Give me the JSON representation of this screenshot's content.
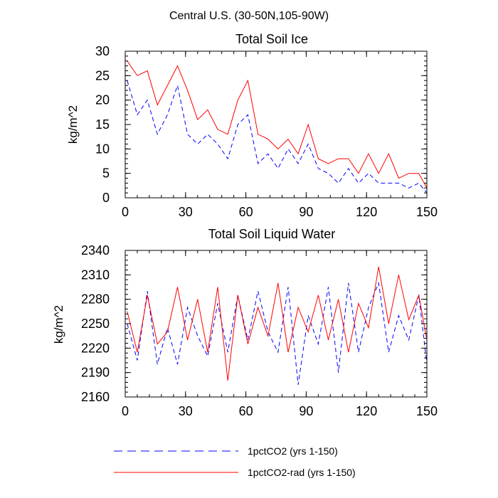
{
  "figure": {
    "title": "Central U.S. (30-50N,105-90W)"
  },
  "legend": {
    "items": [
      {
        "label": "1pctCO2 (yrs 1-150)",
        "color": "#0000ff",
        "dash": "dashed"
      },
      {
        "label": "1pctCO2-rad (yrs 1-150)",
        "color": "#ff0000",
        "dash": "solid"
      }
    ]
  },
  "chart_data": [
    {
      "type": "line",
      "title": "Total Soil Ice",
      "xlabel": "",
      "ylabel": "kg/m^2",
      "xlim": [
        0,
        150
      ],
      "ylim": [
        0,
        30
      ],
      "xticks": [
        0,
        30,
        60,
        90,
        120,
        150
      ],
      "yticks": [
        0,
        5,
        10,
        15,
        20,
        25,
        30
      ],
      "grid": false,
      "legend_position": "bottom",
      "series": [
        {
          "name": "1pctCO2 (yrs 1-150)",
          "color": "#0000ff",
          "dash": "dashed",
          "x": [
            1,
            6,
            11,
            16,
            21,
            26,
            31,
            36,
            41,
            46,
            51,
            56,
            61,
            66,
            71,
            76,
            81,
            86,
            91,
            96,
            101,
            106,
            111,
            116,
            121,
            126,
            131,
            136,
            141,
            146,
            150
          ],
          "y": [
            24,
            17,
            20,
            13,
            17,
            23,
            13,
            11,
            13,
            11,
            8,
            15,
            17,
            7,
            9,
            6,
            10,
            7,
            11,
            6,
            5,
            3,
            6,
            3,
            5,
            3,
            3,
            3,
            2,
            3,
            1
          ]
        },
        {
          "name": "1pctCO2-rad (yrs 1-150)",
          "color": "#ff0000",
          "dash": "solid",
          "x": [
            1,
            6,
            11,
            16,
            21,
            26,
            31,
            36,
            41,
            46,
            51,
            56,
            61,
            66,
            71,
            76,
            81,
            86,
            91,
            96,
            101,
            106,
            111,
            116,
            121,
            126,
            131,
            136,
            141,
            146,
            150
          ],
          "y": [
            28,
            25,
            26,
            19,
            23,
            27,
            22,
            16,
            18,
            14,
            13,
            20,
            24,
            13,
            12,
            10,
            12,
            9,
            15,
            8,
            7,
            8,
            8,
            5,
            9,
            5,
            9,
            4,
            5,
            5,
            2
          ]
        }
      ]
    },
    {
      "type": "line",
      "title": "Total Soil Liquid Water",
      "xlabel": "",
      "ylabel": "kg/m^2",
      "xlim": [
        0,
        150
      ],
      "ylim": [
        2160,
        2340
      ],
      "xticks": [
        0,
        30,
        60,
        90,
        120,
        150
      ],
      "yticks": [
        2160,
        2190,
        2220,
        2250,
        2280,
        2310,
        2340
      ],
      "grid": false,
      "legend_position": "bottom",
      "series": [
        {
          "name": "1pctCO2 (yrs 1-150)",
          "color": "#0000ff",
          "dash": "dashed",
          "x": [
            1,
            6,
            11,
            16,
            21,
            26,
            31,
            36,
            41,
            46,
            51,
            56,
            61,
            66,
            71,
            76,
            81,
            86,
            91,
            96,
            101,
            106,
            111,
            116,
            121,
            126,
            131,
            136,
            141,
            146,
            150
          ],
          "y": [
            2250,
            2205,
            2290,
            2200,
            2245,
            2200,
            2270,
            2235,
            2210,
            2275,
            2215,
            2285,
            2230,
            2290,
            2240,
            2215,
            2295,
            2175,
            2260,
            2225,
            2295,
            2190,
            2300,
            2215,
            2270,
            2300,
            2215,
            2260,
            2230,
            2285,
            2200
          ]
        },
        {
          "name": "1pctCO2-rad (yrs 1-150)",
          "color": "#ff0000",
          "dash": "solid",
          "x": [
            1,
            6,
            11,
            16,
            21,
            26,
            31,
            36,
            41,
            46,
            51,
            56,
            61,
            66,
            71,
            76,
            81,
            86,
            91,
            96,
            101,
            106,
            111,
            116,
            121,
            126,
            131,
            136,
            141,
            146,
            150
          ],
          "y": [
            2265,
            2215,
            2285,
            2225,
            2240,
            2295,
            2230,
            2280,
            2215,
            2295,
            2180,
            2285,
            2225,
            2270,
            2235,
            2300,
            2215,
            2270,
            2240,
            2285,
            2230,
            2280,
            2215,
            2275,
            2245,
            2320,
            2250,
            2310,
            2255,
            2285,
            2230
          ]
        }
      ]
    }
  ]
}
